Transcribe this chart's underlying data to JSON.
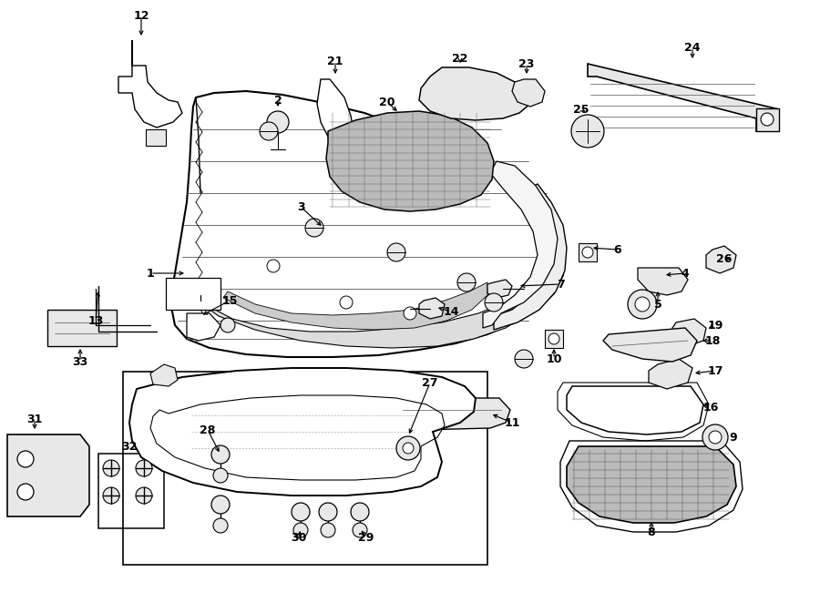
{
  "background_color": "#ffffff",
  "fig_width": 9.0,
  "fig_height": 6.62,
  "dpi": 100,
  "xlim": [
    0,
    9.0
  ],
  "ylim": [
    0,
    6.62
  ],
  "lw_main": 1.3,
  "lw_thin": 0.7,
  "gray_fill": "#e8e8e8",
  "white_fill": "#ffffff",
  "mesh_fill": "#bbbbbb"
}
